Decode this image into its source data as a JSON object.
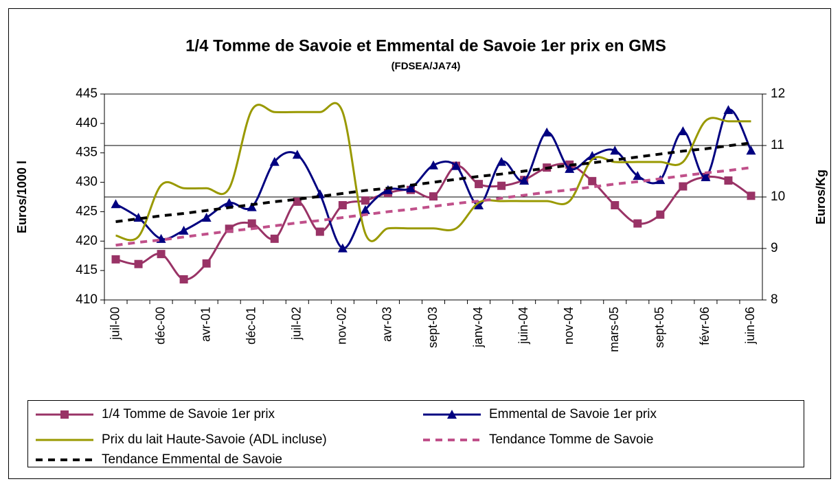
{
  "chart_data": {
    "type": "line",
    "title": "1/4 Tomme de Savoie et Emmental de Savoie 1er prix en GMS",
    "subtitle": "(FDSEA/JA74)",
    "y_label": "Euros/1000 l",
    "y2_label": "Euros/Kg",
    "categories": [
      "juil-00",
      null,
      "déc-00",
      null,
      "avr-01",
      null,
      "déc-01",
      null,
      "juil-02",
      null,
      "nov-02",
      null,
      "avr-03",
      null,
      "sept-03",
      null,
      "janv-04",
      null,
      "juin-04",
      null,
      "nov-04",
      null,
      "mars-05",
      null,
      "sept-05",
      null,
      "févr-06",
      null,
      "juin-06"
    ],
    "ylim": [
      410,
      445
    ],
    "yticks": [
      410,
      415,
      420,
      425,
      430,
      435,
      440,
      445
    ],
    "y2lim": [
      8,
      12
    ],
    "y2ticks": [
      8,
      9,
      10,
      11,
      12
    ],
    "grid": "y2",
    "legend": "bottom",
    "series": [
      {
        "name": "1/4 Tomme de Savoie 1er prix",
        "color": "#993366",
        "marker": "square",
        "style": "smooth",
        "values": [
          416.9,
          416.1,
          417.8,
          413.5,
          416.2,
          422.1,
          423.0,
          420.4,
          426.7,
          421.6,
          426.1,
          426.9,
          428.2,
          428.7,
          427.6,
          432.8,
          429.7,
          429.4,
          430.4,
          432.5,
          433.0,
          430.2,
          426.1,
          423.0,
          424.5,
          429.3,
          430.9,
          430.3,
          427.7
        ]
      },
      {
        "name": "Emmental de Savoie 1er prix",
        "color": "#000080",
        "marker": "triangle",
        "style": "smooth",
        "values": [
          426.3,
          424.0,
          420.4,
          421.8,
          424.0,
          426.5,
          425.8,
          433.5,
          434.7,
          428.0,
          418.8,
          425.3,
          428.7,
          429.0,
          432.9,
          432.8,
          426.1,
          433.5,
          430.3,
          438.5,
          432.3,
          434.5,
          435.4,
          431.1,
          430.4,
          438.7,
          430.9,
          442.3,
          435.4
        ]
      },
      {
        "name": "Prix du lait Haute-Savoie (ADL incluse)",
        "color": "#999900",
        "style": "smooth",
        "axis": "y2",
        "values": [
          9.25,
          9.23,
          10.23,
          10.17,
          10.17,
          10.17,
          11.69,
          11.65,
          11.65,
          11.65,
          11.65,
          9.29,
          9.39,
          9.39,
          9.39,
          9.39,
          9.89,
          9.92,
          9.92,
          9.92,
          9.92,
          10.73,
          10.68,
          10.68,
          10.68,
          10.68,
          11.48,
          11.47,
          11.47
        ]
      },
      {
        "name": "Tendance Tomme de Savoie",
        "color": "#c0508a",
        "style": "dashed",
        "values": [
          419.3,
          419.8,
          420.2,
          420.7,
          421.2,
          421.7,
          422.1,
          422.6,
          423.1,
          423.5,
          424.0,
          424.5,
          425.0,
          425.4,
          425.9,
          426.4,
          426.8,
          427.3,
          427.8,
          428.3,
          428.7,
          429.2,
          429.7,
          430.1,
          430.6,
          431.1,
          431.6,
          432.0,
          432.5
        ]
      },
      {
        "name": "Tendance Emmental de Savoie",
        "color": "#000000",
        "style": "dashed",
        "values": [
          423.3,
          423.8,
          424.3,
          424.7,
          425.2,
          425.7,
          426.2,
          426.7,
          427.1,
          427.6,
          428.1,
          428.6,
          429.0,
          429.5,
          430.0,
          430.5,
          431.0,
          431.4,
          431.9,
          432.4,
          432.9,
          433.3,
          433.8,
          434.3,
          434.8,
          435.3,
          435.7,
          436.2,
          436.7
        ]
      }
    ]
  }
}
